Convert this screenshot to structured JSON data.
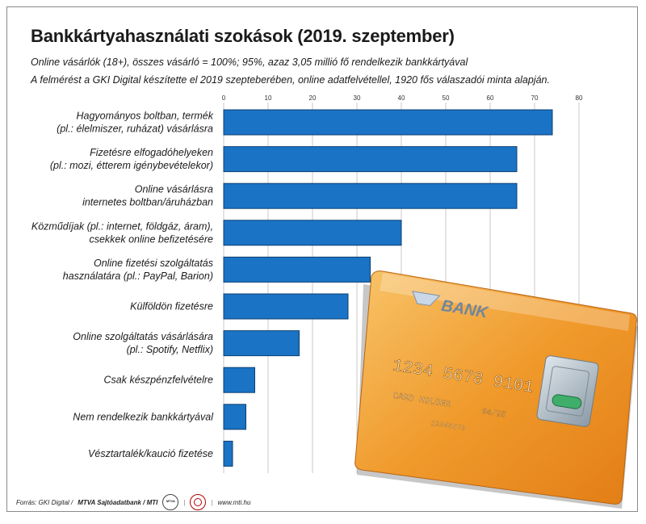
{
  "header": {
    "title": "Bankkártyahasználati szokások (2019. szeptember)",
    "subtitle_1": "Online vásárlók (18+), összes vásárló = 100%; 95%, azaz 3,05 millió fő rendelkezik bankkártyával",
    "subtitle_2": "A felmérést a GKI Digital készítette el 2019 szepteberében, online adatfelvétellel, 1920 fős válaszadói minta alapján."
  },
  "colors": {
    "bar": "#1a73c4",
    "bar_edge": "#0d3f73",
    "grid": "#c9c9c9",
    "card": "#f0a43a"
  },
  "chart_data": {
    "type": "bar",
    "orientation": "horizontal",
    "categories": [
      [
        "Hagyományos boltban, termék",
        "(pl.: élelmiszer, ruházat) vásárlásra"
      ],
      [
        "Fizetésre elfogadóhelyeken",
        "(pl.: mozi, étterem igénybevételekor)"
      ],
      [
        "Online vásárlásra",
        "internetes boltban/áruházban"
      ],
      [
        "Közműdíjak (pl.: internet, földgáz, áram),",
        "csekkek online befizetésére"
      ],
      [
        "Online fizetési szolgáltatás",
        "használatára (pl.: PayPal, Barion)"
      ],
      [
        "Külföldön fizetésre"
      ],
      [
        "Online szolgáltatás vásárlására",
        "(pl.: Spotify, Netflix)"
      ],
      [
        "Csak készpénzfelvételre"
      ],
      [
        "Nem rendelkezik bankkártyával"
      ],
      [
        "Vésztartalék/kaució fizetése"
      ]
    ],
    "values": [
      74,
      66,
      66,
      40,
      33,
      28,
      17,
      7,
      5,
      2
    ],
    "xlim": [
      0,
      80
    ],
    "xticks": [
      "0",
      "10",
      "20",
      "30",
      "40",
      "50",
      "60",
      "70",
      "80"
    ],
    "grid": true,
    "legend": "none"
  },
  "card": {
    "brand": "BANK",
    "number": "1234  5678  9101  1121",
    "holder": "CARD HOLDER",
    "expiry": "04/25",
    "small_number": "12345678"
  },
  "footer": {
    "source": "Forrás: GKI Digital /",
    "agency": "MTVA Sajtóadatbank / MTI",
    "site": "www.mti.hu"
  }
}
